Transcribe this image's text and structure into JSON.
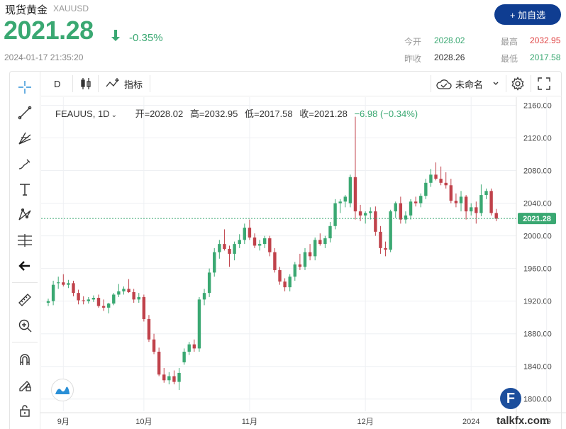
{
  "header": {
    "title": "现货黄金",
    "symbol": "XAUUSD",
    "price": "2021.28",
    "change_pct": "-0.35%",
    "timestamp": "2024-01-17 21:35:20",
    "add_watchlist_label": "+ 加自选",
    "stats": {
      "open_label": "今开",
      "open_value": "2028.02",
      "high_label": "最高",
      "high_value": "2032.95",
      "prev_close_label": "昨收",
      "prev_close_value": "2028.26",
      "low_label": "最低",
      "low_value": "2017.58"
    }
  },
  "toolbar": {
    "interval_label": "D",
    "indicators_label": "指标",
    "layout_name": "未命名"
  },
  "colors": {
    "up": "#3aa872",
    "down": "#c0424b",
    "brand": "#0f3d91"
  },
  "chart_legend": {
    "symbol": "FEAUUS, 1D",
    "open": "开=2028.02",
    "high": "高=2032.95",
    "low": "低=2017.58",
    "close": "收=2021.28",
    "change": "−6.98 (−0.34%)"
  },
  "watermark": "talkfx.com",
  "chart_data": {
    "type": "candlestick",
    "title": "",
    "xlabel": "",
    "ylabel": "",
    "ylim": [
      1785,
      2170
    ],
    "y_ticks": [
      "1800.00",
      "1840.00",
      "1880.00",
      "1920.00",
      "1960.00",
      "2000.00",
      "2040.00",
      "2080.00",
      "2120.00",
      "2160.00"
    ],
    "x_ticks": [
      "9月",
      "10月",
      "11月",
      "12月",
      "2024",
      "19"
    ],
    "last_price_label": "2021.28",
    "last_price": 2021.28,
    "grid": true,
    "candles": [
      {
        "o": 1918,
        "h": 1923,
        "l": 1914,
        "c": 1920
      },
      {
        "o": 1920,
        "h": 1945,
        "l": 1915,
        "c": 1940
      },
      {
        "o": 1942,
        "h": 1950,
        "l": 1935,
        "c": 1943
      },
      {
        "o": 1943,
        "h": 1953,
        "l": 1938,
        "c": 1940
      },
      {
        "o": 1940,
        "h": 1946,
        "l": 1936,
        "c": 1942
      },
      {
        "o": 1942,
        "h": 1945,
        "l": 1926,
        "c": 1930
      },
      {
        "o": 1930,
        "h": 1934,
        "l": 1916,
        "c": 1921
      },
      {
        "o": 1921,
        "h": 1926,
        "l": 1916,
        "c": 1920
      },
      {
        "o": 1920,
        "h": 1925,
        "l": 1917,
        "c": 1922
      },
      {
        "o": 1922,
        "h": 1927,
        "l": 1919,
        "c": 1924
      },
      {
        "o": 1924,
        "h": 1928,
        "l": 1912,
        "c": 1914
      },
      {
        "o": 1914,
        "h": 1922,
        "l": 1908,
        "c": 1912
      },
      {
        "o": 1912,
        "h": 1918,
        "l": 1905,
        "c": 1917
      },
      {
        "o": 1917,
        "h": 1930,
        "l": 1915,
        "c": 1928
      },
      {
        "o": 1928,
        "h": 1941,
        "l": 1925,
        "c": 1932
      },
      {
        "o": 1932,
        "h": 1938,
        "l": 1928,
        "c": 1935
      },
      {
        "o": 1935,
        "h": 1947,
        "l": 1930,
        "c": 1931
      },
      {
        "o": 1931,
        "h": 1935,
        "l": 1918,
        "c": 1922
      },
      {
        "o": 1922,
        "h": 1930,
        "l": 1918,
        "c": 1925
      },
      {
        "o": 1925,
        "h": 1928,
        "l": 1895,
        "c": 1898
      },
      {
        "o": 1898,
        "h": 1903,
        "l": 1870,
        "c": 1873
      },
      {
        "o": 1873,
        "h": 1880,
        "l": 1855,
        "c": 1858
      },
      {
        "o": 1858,
        "h": 1863,
        "l": 1828,
        "c": 1830
      },
      {
        "o": 1830,
        "h": 1838,
        "l": 1820,
        "c": 1823
      },
      {
        "o": 1823,
        "h": 1833,
        "l": 1818,
        "c": 1828
      },
      {
        "o": 1828,
        "h": 1835,
        "l": 1818,
        "c": 1821
      },
      {
        "o": 1821,
        "h": 1838,
        "l": 1811,
        "c": 1832
      },
      {
        "o": 1845,
        "h": 1862,
        "l": 1842,
        "c": 1858
      },
      {
        "o": 1858,
        "h": 1870,
        "l": 1854,
        "c": 1867
      },
      {
        "o": 1867,
        "h": 1873,
        "l": 1858,
        "c": 1862
      },
      {
        "o": 1862,
        "h": 1925,
        "l": 1858,
        "c": 1922
      },
      {
        "o": 1922,
        "h": 1935,
        "l": 1915,
        "c": 1930
      },
      {
        "o": 1930,
        "h": 1960,
        "l": 1925,
        "c": 1955
      },
      {
        "o": 1955,
        "h": 1985,
        "l": 1950,
        "c": 1980
      },
      {
        "o": 1980,
        "h": 1995,
        "l": 1972,
        "c": 1990
      },
      {
        "o": 1990,
        "h": 2008,
        "l": 1982,
        "c": 1984
      },
      {
        "o": 1984,
        "h": 1988,
        "l": 1962,
        "c": 1978
      },
      {
        "o": 1978,
        "h": 1993,
        "l": 1970,
        "c": 1990
      },
      {
        "o": 1990,
        "h": 2002,
        "l": 1985,
        "c": 1995
      },
      {
        "o": 1995,
        "h": 2015,
        "l": 1990,
        "c": 2010
      },
      {
        "o": 2010,
        "h": 2020,
        "l": 1995,
        "c": 1998
      },
      {
        "o": 1998,
        "h": 2003,
        "l": 1985,
        "c": 1988
      },
      {
        "o": 1988,
        "h": 1995,
        "l": 1982,
        "c": 1990
      },
      {
        "o": 1990,
        "h": 2000,
        "l": 1985,
        "c": 1997
      },
      {
        "o": 1997,
        "h": 2000,
        "l": 1975,
        "c": 1980
      },
      {
        "o": 1980,
        "h": 1985,
        "l": 1955,
        "c": 1958
      },
      {
        "o": 1958,
        "h": 1962,
        "l": 1940,
        "c": 1944
      },
      {
        "o": 1944,
        "h": 1948,
        "l": 1932,
        "c": 1937
      },
      {
        "o": 1937,
        "h": 1953,
        "l": 1932,
        "c": 1950
      },
      {
        "o": 1950,
        "h": 1968,
        "l": 1945,
        "c": 1965
      },
      {
        "o": 1965,
        "h": 1978,
        "l": 1958,
        "c": 1962
      },
      {
        "o": 1962,
        "h": 1985,
        "l": 1958,
        "c": 1980
      },
      {
        "o": 1980,
        "h": 1990,
        "l": 1970,
        "c": 1975
      },
      {
        "o": 1975,
        "h": 1998,
        "l": 1970,
        "c": 1995
      },
      {
        "o": 1995,
        "h": 2003,
        "l": 1988,
        "c": 1990
      },
      {
        "o": 1990,
        "h": 2000,
        "l": 1985,
        "c": 1997
      },
      {
        "o": 1997,
        "h": 2017,
        "l": 1992,
        "c": 2012
      },
      {
        "o": 2012,
        "h": 2045,
        "l": 2008,
        "c": 2040
      },
      {
        "o": 2040,
        "h": 2045,
        "l": 2028,
        "c": 2042
      },
      {
        "o": 2042,
        "h": 2050,
        "l": 2035,
        "c": 2048
      },
      {
        "o": 2040,
        "h": 2075,
        "l": 2035,
        "c": 2072
      },
      {
        "o": 2072,
        "h": 2146,
        "l": 2020,
        "c": 2030
      },
      {
        "o": 2030,
        "h": 2038,
        "l": 2018,
        "c": 2025
      },
      {
        "o": 2025,
        "h": 2030,
        "l": 2015,
        "c": 2028
      },
      {
        "o": 2028,
        "h": 2035,
        "l": 2020,
        "c": 2030
      },
      {
        "o": 2030,
        "h": 2036,
        "l": 2000,
        "c": 2005
      },
      {
        "o": 2005,
        "h": 2012,
        "l": 1978,
        "c": 1985
      },
      {
        "o": 1985,
        "h": 1993,
        "l": 1975,
        "c": 1983
      },
      {
        "o": 1983,
        "h": 2032,
        "l": 1980,
        "c": 2030
      },
      {
        "o": 2030,
        "h": 2042,
        "l": 2022,
        "c": 2040
      },
      {
        "o": 2040,
        "h": 2048,
        "l": 2015,
        "c": 2020
      },
      {
        "o": 2020,
        "h": 2030,
        "l": 2015,
        "c": 2025
      },
      {
        "o": 2025,
        "h": 2045,
        "l": 2020,
        "c": 2042
      },
      {
        "o": 2042,
        "h": 2048,
        "l": 2036,
        "c": 2040
      },
      {
        "o": 2040,
        "h": 2052,
        "l": 2035,
        "c": 2049
      },
      {
        "o": 2049,
        "h": 2070,
        "l": 2045,
        "c": 2065
      },
      {
        "o": 2065,
        "h": 2082,
        "l": 2060,
        "c": 2075
      },
      {
        "o": 2075,
        "h": 2090,
        "l": 2068,
        "c": 2070
      },
      {
        "o": 2070,
        "h": 2085,
        "l": 2062,
        "c": 2065
      },
      {
        "o": 2065,
        "h": 2078,
        "l": 2058,
        "c": 2062
      },
      {
        "o": 2062,
        "h": 2070,
        "l": 2040,
        "c": 2043
      },
      {
        "o": 2043,
        "h": 2052,
        "l": 2035,
        "c": 2040
      },
      {
        "o": 2040,
        "h": 2055,
        "l": 2030,
        "c": 2048
      },
      {
        "o": 2048,
        "h": 2050,
        "l": 2020,
        "c": 2030
      },
      {
        "o": 2030,
        "h": 2040,
        "l": 2025,
        "c": 2035
      },
      {
        "o": 2035,
        "h": 2042,
        "l": 2015,
        "c": 2028
      },
      {
        "o": 2028,
        "h": 2063,
        "l": 2024,
        "c": 2050
      },
      {
        "o": 2050,
        "h": 2058,
        "l": 2045,
        "c": 2055
      },
      {
        "o": 2055,
        "h": 2058,
        "l": 2025,
        "c": 2028
      },
      {
        "o": 2028,
        "h": 2033,
        "l": 2018,
        "c": 2021
      }
    ]
  }
}
